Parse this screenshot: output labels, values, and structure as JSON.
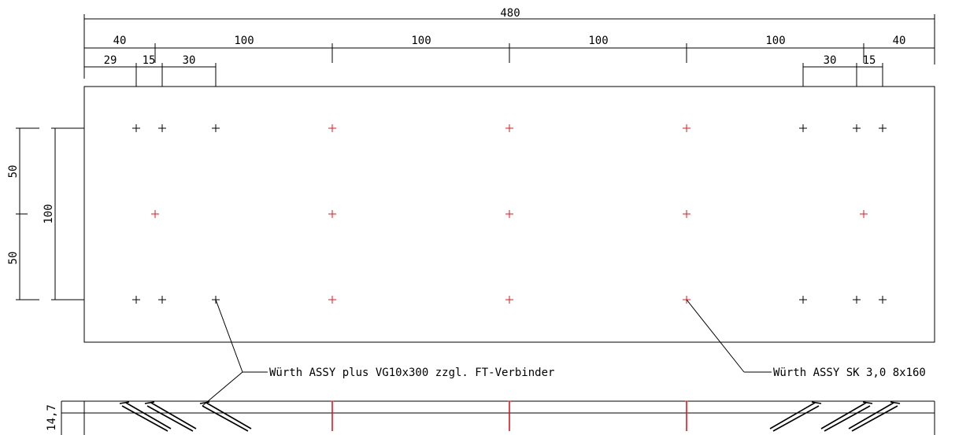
{
  "colors": {
    "line": "#000000",
    "accent": "#e8141a",
    "background": "#ffffff"
  },
  "dimensions": {
    "overall": "480",
    "row2": [
      "40",
      "100",
      "100",
      "100",
      "100",
      "40"
    ],
    "row3_left": [
      "29",
      "15",
      "30"
    ],
    "row3_right": [
      "30",
      "15"
    ],
    "vertical_total": "100",
    "vertical_parts": [
      "50",
      "50"
    ],
    "section_left": "14,7"
  },
  "annotations": {
    "left_label": "Würth ASSY plus VG10x300 zzgl. FT-Verbinder",
    "right_label": "Würth ASSY SK 3,0 8x160"
  }
}
